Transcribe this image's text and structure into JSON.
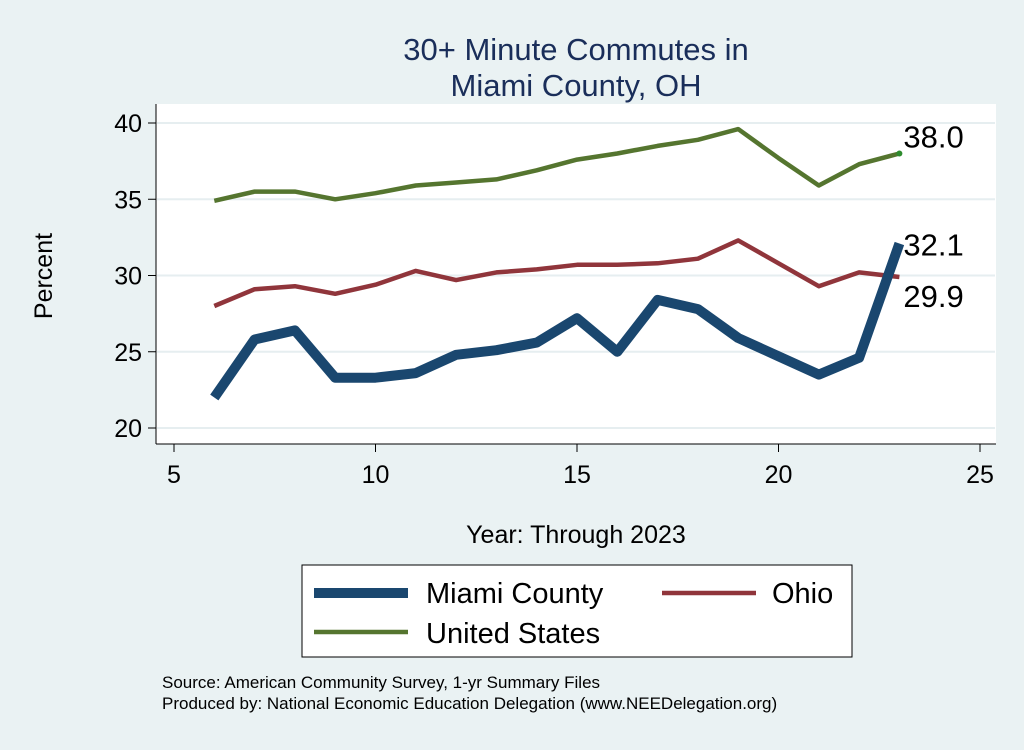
{
  "chart_data": {
    "type": "line",
    "title": [
      "30+ Minute Commutes in",
      "Miami County, OH"
    ],
    "xlabel": "Year: Through 2023",
    "ylabel": "Percent",
    "xlim": [
      5,
      25
    ],
    "ylim": [
      20,
      40
    ],
    "xticks": [
      5,
      10,
      15,
      20,
      25
    ],
    "yticks": [
      20,
      25,
      30,
      35,
      40
    ],
    "grid": true,
    "legend_position": "bottom",
    "series": [
      {
        "name": "Miami County",
        "color": "#1a476f",
        "width": "thick",
        "x": [
          6,
          7,
          8,
          9,
          10,
          11,
          12,
          13,
          14,
          15,
          16,
          17,
          18,
          19,
          20,
          21,
          22,
          23
        ],
        "values": [
          22.0,
          25.8,
          26.4,
          23.3,
          23.3,
          23.6,
          24.8,
          25.1,
          25.6,
          27.2,
          25.0,
          28.4,
          27.8,
          25.9,
          24.7,
          23.5,
          24.6,
          32.1
        ],
        "end_label": "32.1"
      },
      {
        "name": "Ohio",
        "color": "#90353b",
        "width": "medium",
        "x": [
          6,
          7,
          8,
          9,
          10,
          11,
          12,
          13,
          14,
          15,
          16,
          17,
          18,
          19,
          20,
          21,
          22,
          23
        ],
        "values": [
          28.0,
          29.1,
          29.3,
          28.8,
          29.4,
          30.3,
          29.7,
          30.2,
          30.4,
          30.7,
          30.7,
          30.8,
          31.1,
          32.3,
          30.8,
          29.3,
          30.2,
          29.9
        ],
        "end_label": "29.9"
      },
      {
        "name": "United States",
        "color": "#55752f",
        "width": "medium",
        "x": [
          6,
          7,
          8,
          9,
          10,
          11,
          12,
          13,
          14,
          15,
          16,
          17,
          18,
          19,
          20,
          21,
          22,
          23
        ],
        "values": [
          34.9,
          35.5,
          35.5,
          35.0,
          35.4,
          35.9,
          36.1,
          36.3,
          36.9,
          37.6,
          38.0,
          38.5,
          38.9,
          39.6,
          37.7,
          35.9,
          37.3,
          38.0
        ],
        "end_label": "38.0"
      }
    ],
    "notes": [
      "Source: American Community Survey, 1-yr Summary Files",
      "Produced by: National Economic Education Delegation (www.NEEDelegation.org)"
    ]
  }
}
